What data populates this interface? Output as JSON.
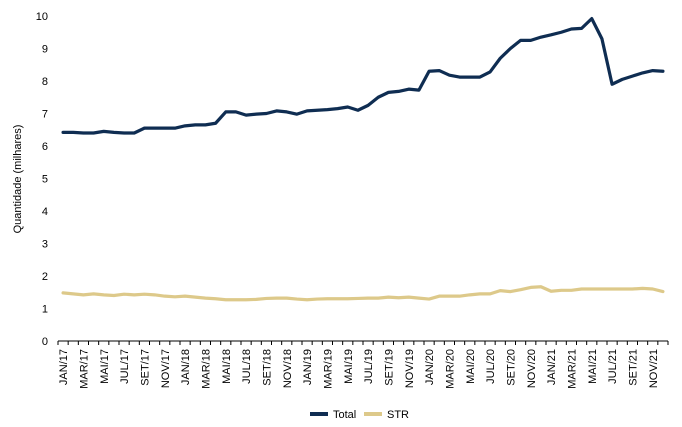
{
  "chart_data": {
    "type": "line",
    "ylabel": "Quantidade (milhares)",
    "ylim": [
      0,
      10
    ],
    "yticks": [
      0,
      1,
      2,
      3,
      4,
      5,
      6,
      7,
      8,
      9,
      10
    ],
    "grid": false,
    "legend_position": "bottom-center",
    "x": [
      "JAN/17",
      "FEV/17",
      "MAR/17",
      "ABR/17",
      "MAI/17",
      "JUN/17",
      "JUL/17",
      "AGO/17",
      "SET/17",
      "OUT/17",
      "NOV/17",
      "DEZ/17",
      "JAN/18",
      "FEV/18",
      "MAR/18",
      "ABR/18",
      "MAI/18",
      "JUN/18",
      "JUL/18",
      "AGO/18",
      "SET/18",
      "OUT/18",
      "NOV/18",
      "DEZ/18",
      "JAN/19",
      "FEV/19",
      "MAR/19",
      "ABR/19",
      "MAI/19",
      "JUN/19",
      "JUL/19",
      "AGO/19",
      "SET/19",
      "OUT/19",
      "NOV/19",
      "DEZ/19",
      "JAN/20",
      "FEV/20",
      "MAR/20",
      "ABR/20",
      "MAI/20",
      "JUN/20",
      "JUL/20",
      "AGO/20",
      "SET/20",
      "OUT/20",
      "NOV/20",
      "DEZ/20",
      "JAN/21",
      "FEV/21",
      "MAR/21",
      "ABR/21",
      "MAI/21",
      "JUN/21",
      "JUL/21",
      "AGO/21",
      "SET/21",
      "OUT/21",
      "NOV/21",
      "DEZ/21"
    ],
    "x_tick_labels": [
      "JAN/17",
      "MAR/17",
      "MAI/17",
      "JUL/17",
      "SET/17",
      "NOV/17",
      "JAN/18",
      "MAR/18",
      "MAI/18",
      "JUL/18",
      "SET/18",
      "NOV/18",
      "JAN/19",
      "MAR/19",
      "MAI/19",
      "JUL/19",
      "SET/19",
      "NOV/19",
      "JAN/20",
      "MAR/20",
      "MAI/20",
      "JUL/20",
      "SET/20",
      "NOV/20",
      "JAN/21",
      "MAR/21",
      "MAI/21",
      "JUL/21",
      "SET/21",
      "NOV/21"
    ],
    "series": [
      {
        "name": "Total",
        "color": "#0f2d52",
        "values": [
          6.42,
          6.42,
          6.4,
          6.4,
          6.45,
          6.42,
          6.4,
          6.4,
          6.55,
          6.55,
          6.55,
          6.55,
          6.62,
          6.65,
          6.65,
          6.7,
          7.05,
          7.05,
          6.95,
          6.98,
          7.0,
          7.08,
          7.05,
          6.98,
          7.08,
          7.1,
          7.12,
          7.15,
          7.2,
          7.1,
          7.25,
          7.5,
          7.65,
          7.68,
          7.75,
          7.72,
          8.3,
          8.32,
          8.18,
          8.12,
          8.12,
          8.12,
          8.28,
          8.7,
          9.0,
          9.25,
          9.25,
          9.35,
          9.42,
          9.5,
          9.6,
          9.62,
          9.92,
          9.3,
          7.9,
          8.05,
          8.15,
          8.25,
          8.32,
          8.3
        ]
      },
      {
        "name": "STR",
        "color": "#ddc98a",
        "values": [
          1.48,
          1.45,
          1.42,
          1.45,
          1.42,
          1.4,
          1.44,
          1.42,
          1.44,
          1.42,
          1.38,
          1.36,
          1.38,
          1.35,
          1.32,
          1.3,
          1.27,
          1.27,
          1.27,
          1.28,
          1.31,
          1.32,
          1.32,
          1.29,
          1.27,
          1.29,
          1.3,
          1.3,
          1.3,
          1.31,
          1.32,
          1.32,
          1.35,
          1.33,
          1.35,
          1.32,
          1.29,
          1.38,
          1.38,
          1.38,
          1.42,
          1.45,
          1.45,
          1.55,
          1.52,
          1.58,
          1.65,
          1.67,
          1.53,
          1.56,
          1.56,
          1.6,
          1.6,
          1.6,
          1.6,
          1.6,
          1.6,
          1.62,
          1.6,
          1.52
        ]
      }
    ]
  }
}
